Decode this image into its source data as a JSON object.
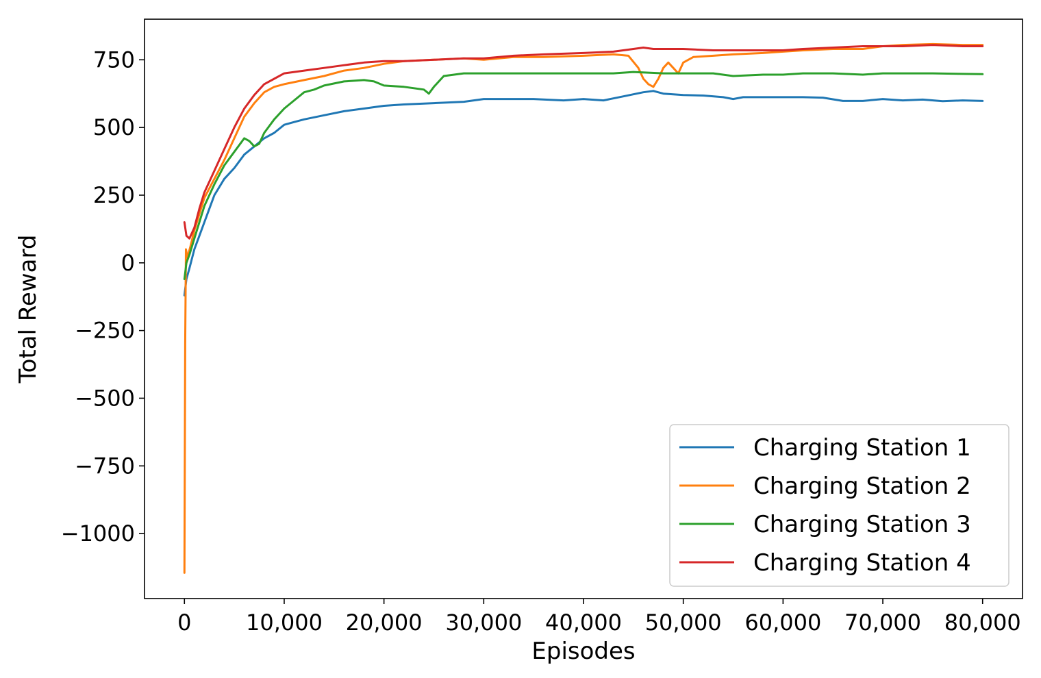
{
  "chart_data": {
    "type": "line",
    "title": "",
    "xlabel": "Episodes",
    "ylabel": "Total Reward",
    "xlim": [
      -4000,
      84000
    ],
    "ylim": [
      -1240,
      900
    ],
    "x_ticks": [
      0,
      10000,
      20000,
      30000,
      40000,
      50000,
      60000,
      70000,
      80000
    ],
    "x_tick_labels": [
      "0",
      "10,000",
      "20,000",
      "30,000",
      "40,000",
      "50,000",
      "60,000",
      "70,000",
      "80,000"
    ],
    "y_ticks": [
      750,
      500,
      250,
      0,
      -250,
      -500,
      -750,
      -1000
    ],
    "y_tick_labels": [
      "750",
      "500",
      "250",
      "0",
      "−250",
      "−500",
      "−750",
      "−1000"
    ],
    "grid": false,
    "legend_position": "bottom-right",
    "series": [
      {
        "name": "Charging Station 1",
        "color": "#1f77b4",
        "points": [
          [
            0,
            -120
          ],
          [
            200,
            -60
          ],
          [
            500,
            -20
          ],
          [
            1000,
            50
          ],
          [
            1500,
            100
          ],
          [
            2000,
            150
          ],
          [
            2500,
            200
          ],
          [
            3000,
            250
          ],
          [
            4000,
            310
          ],
          [
            5000,
            350
          ],
          [
            6000,
            400
          ],
          [
            7000,
            430
          ],
          [
            8000,
            460
          ],
          [
            9000,
            480
          ],
          [
            10000,
            510
          ],
          [
            11000,
            520
          ],
          [
            12000,
            530
          ],
          [
            14000,
            545
          ],
          [
            16000,
            560
          ],
          [
            18000,
            570
          ],
          [
            20000,
            580
          ],
          [
            22000,
            585
          ],
          [
            25000,
            590
          ],
          [
            28000,
            595
          ],
          [
            30000,
            605
          ],
          [
            32000,
            605
          ],
          [
            35000,
            605
          ],
          [
            38000,
            600
          ],
          [
            40000,
            605
          ],
          [
            42000,
            600
          ],
          [
            44000,
            615
          ],
          [
            46000,
            630
          ],
          [
            47000,
            635
          ],
          [
            48000,
            625
          ],
          [
            50000,
            620
          ],
          [
            52000,
            618
          ],
          [
            54000,
            612
          ],
          [
            55000,
            605
          ],
          [
            56000,
            612
          ],
          [
            58000,
            612
          ],
          [
            60000,
            612
          ],
          [
            62000,
            612
          ],
          [
            64000,
            610
          ],
          [
            66000,
            598
          ],
          [
            68000,
            598
          ],
          [
            70000,
            605
          ],
          [
            72000,
            600
          ],
          [
            74000,
            603
          ],
          [
            76000,
            597
          ],
          [
            78000,
            600
          ],
          [
            80000,
            598
          ]
        ]
      },
      {
        "name": "Charging Station 2",
        "color": "#ff7f0e",
        "points": [
          [
            0,
            -1145
          ],
          [
            80,
            -300
          ],
          [
            150,
            50
          ],
          [
            300,
            20
          ],
          [
            600,
            60
          ],
          [
            1000,
            120
          ],
          [
            1500,
            180
          ],
          [
            2000,
            240
          ],
          [
            3000,
            310
          ],
          [
            4000,
            380
          ],
          [
            5000,
            460
          ],
          [
            6000,
            540
          ],
          [
            7000,
            590
          ],
          [
            8000,
            630
          ],
          [
            9000,
            650
          ],
          [
            10000,
            660
          ],
          [
            12000,
            675
          ],
          [
            14000,
            690
          ],
          [
            16000,
            710
          ],
          [
            18000,
            720
          ],
          [
            20000,
            735
          ],
          [
            22000,
            745
          ],
          [
            25000,
            750
          ],
          [
            28000,
            755
          ],
          [
            30000,
            750
          ],
          [
            33000,
            760
          ],
          [
            36000,
            760
          ],
          [
            40000,
            765
          ],
          [
            43000,
            770
          ],
          [
            44500,
            765
          ],
          [
            45500,
            720
          ],
          [
            46000,
            680
          ],
          [
            46500,
            660
          ],
          [
            47000,
            650
          ],
          [
            47500,
            680
          ],
          [
            48000,
            720
          ],
          [
            48500,
            740
          ],
          [
            49000,
            720
          ],
          [
            49500,
            700
          ],
          [
            50000,
            740
          ],
          [
            51000,
            760
          ],
          [
            53000,
            765
          ],
          [
            55000,
            770
          ],
          [
            58000,
            775
          ],
          [
            60000,
            780
          ],
          [
            62000,
            785
          ],
          [
            65000,
            790
          ],
          [
            68000,
            790
          ],
          [
            70000,
            800
          ],
          [
            72000,
            805
          ],
          [
            75000,
            808
          ],
          [
            78000,
            805
          ],
          [
            80000,
            805
          ]
        ]
      },
      {
        "name": "Charging Station 3",
        "color": "#2ca02c",
        "points": [
          [
            0,
            -60
          ],
          [
            200,
            0
          ],
          [
            500,
            30
          ],
          [
            1000,
            90
          ],
          [
            1500,
            150
          ],
          [
            2000,
            210
          ],
          [
            3000,
            290
          ],
          [
            4000,
            360
          ],
          [
            5000,
            410
          ],
          [
            6000,
            460
          ],
          [
            6500,
            450
          ],
          [
            7000,
            430
          ],
          [
            7500,
            440
          ],
          [
            8000,
            480
          ],
          [
            9000,
            530
          ],
          [
            10000,
            570
          ],
          [
            11000,
            600
          ],
          [
            12000,
            630
          ],
          [
            13000,
            640
          ],
          [
            14000,
            655
          ],
          [
            16000,
            670
          ],
          [
            18000,
            675
          ],
          [
            19000,
            670
          ],
          [
            20000,
            655
          ],
          [
            22000,
            650
          ],
          [
            24000,
            640
          ],
          [
            24500,
            625
          ],
          [
            25000,
            650
          ],
          [
            26000,
            690
          ],
          [
            28000,
            700
          ],
          [
            30000,
            700
          ],
          [
            33000,
            700
          ],
          [
            36000,
            700
          ],
          [
            40000,
            700
          ],
          [
            43000,
            700
          ],
          [
            45000,
            705
          ],
          [
            48000,
            700
          ],
          [
            50000,
            700
          ],
          [
            53000,
            700
          ],
          [
            55000,
            690
          ],
          [
            58000,
            695
          ],
          [
            60000,
            695
          ],
          [
            62000,
            700
          ],
          [
            65000,
            700
          ],
          [
            68000,
            695
          ],
          [
            70000,
            700
          ],
          [
            72000,
            700
          ],
          [
            75000,
            700
          ],
          [
            78000,
            698
          ],
          [
            80000,
            697
          ]
        ]
      },
      {
        "name": "Charging Station 4",
        "color": "#d62728",
        "points": [
          [
            0,
            150
          ],
          [
            200,
            100
          ],
          [
            500,
            90
          ],
          [
            1000,
            130
          ],
          [
            1500,
            200
          ],
          [
            2000,
            260
          ],
          [
            3000,
            340
          ],
          [
            4000,
            420
          ],
          [
            5000,
            500
          ],
          [
            6000,
            570
          ],
          [
            7000,
            620
          ],
          [
            8000,
            660
          ],
          [
            9000,
            680
          ],
          [
            10000,
            700
          ],
          [
            12000,
            710
          ],
          [
            14000,
            720
          ],
          [
            16000,
            730
          ],
          [
            18000,
            740
          ],
          [
            20000,
            745
          ],
          [
            22000,
            745
          ],
          [
            25000,
            750
          ],
          [
            28000,
            755
          ],
          [
            30000,
            755
          ],
          [
            33000,
            765
          ],
          [
            36000,
            770
          ],
          [
            40000,
            775
          ],
          [
            43000,
            780
          ],
          [
            45000,
            790
          ],
          [
            46000,
            795
          ],
          [
            47000,
            790
          ],
          [
            50000,
            790
          ],
          [
            53000,
            785
          ],
          [
            55000,
            785
          ],
          [
            58000,
            785
          ],
          [
            60000,
            785
          ],
          [
            62000,
            790
          ],
          [
            65000,
            795
          ],
          [
            68000,
            800
          ],
          [
            70000,
            800
          ],
          [
            72000,
            800
          ],
          [
            75000,
            805
          ],
          [
            78000,
            800
          ],
          [
            80000,
            800
          ]
        ]
      }
    ]
  }
}
